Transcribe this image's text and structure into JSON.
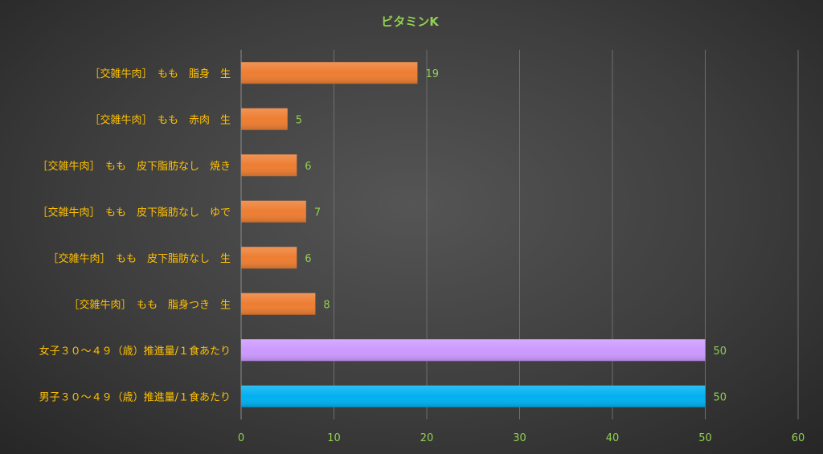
{
  "chart_data": {
    "type": "bar",
    "orientation": "horizontal",
    "title": "ビタミンK",
    "categories": [
      "［交雑牛肉］　もも　脂身　生",
      "［交雑牛肉］　もも　赤肉　生",
      "［交雑牛肉］　もも　皮下脂肪なし　焼き",
      "［交雑牛肉］　もも　皮下脂肪なし　ゆで",
      "［交雑牛肉］　もも　皮下脂肪なし　生",
      "［交雑牛肉］　もも　脂身つき　生",
      "女子３０～４９（歳）推進量/１食あたり",
      "男子３０～４９（歳）推進量/１食あたり"
    ],
    "values": [
      19,
      5,
      6,
      7,
      6,
      8,
      50,
      50
    ],
    "colors": [
      "#ed7d31",
      "#ed7d31",
      "#ed7d31",
      "#ed7d31",
      "#ed7d31",
      "#ed7d31",
      "#cc99ff",
      "#00b0f0"
    ],
    "xlim": [
      0,
      60
    ],
    "xticks": [
      0,
      10,
      20,
      30,
      40,
      50,
      60
    ],
    "grid": true,
    "legend": "none",
    "xlabel": "",
    "ylabel": ""
  }
}
